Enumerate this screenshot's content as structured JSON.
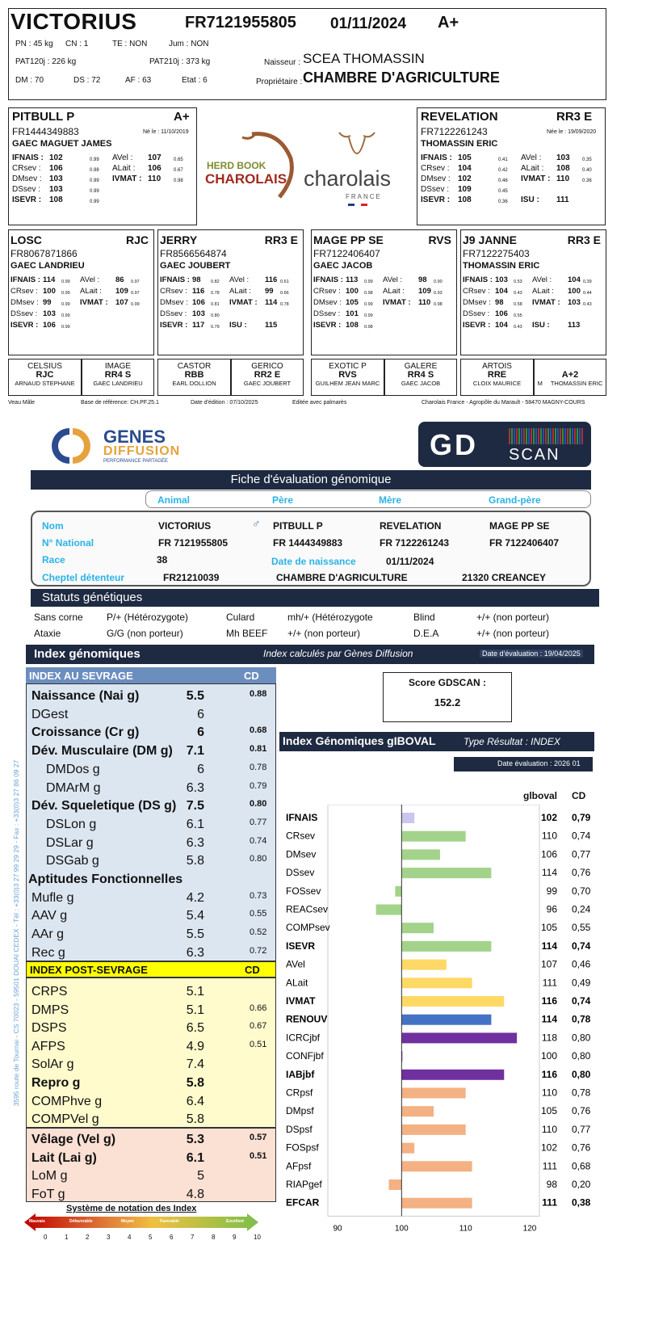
{
  "animal": {
    "name": "VICTORIUS",
    "national": "FR7121955805",
    "birth": "01/11/2024",
    "class": "A+",
    "pn": "PN : 45 kg",
    "cn": "CN : 1",
    "te": "TE : NON",
    "jum": "Jum : NON",
    "pat120": "PAT120j : 226 kg",
    "pat210": "PAT210j : 373 kg",
    "dm": "DM : 70",
    "ds": "DS : 72",
    "af": "AF : 63",
    "etat": "Etat : 6",
    "naisseur_label": "Naisseur :",
    "naisseur": "SCEA THOMASSIN",
    "proprio_label": "Propriétaire :",
    "proprio": "CHAMBRE D'AGRICULTURE"
  },
  "sire": {
    "name": "PITBULL P",
    "class": "A+",
    "national": "FR1444349883",
    "born": "Né le : 11/10/2019",
    "owner": "GAEC MAGUET JAMES",
    "l1": [
      "IFNAIS :",
      "102",
      "0.99",
      "AVel :",
      "107",
      "0.65"
    ],
    "l2": [
      "CRsev :",
      "106",
      "0.98",
      "ALait :",
      "106",
      "0.67"
    ],
    "l3": [
      "DMsev :",
      "103",
      "0.99",
      "IVMAT :",
      "110",
      "0.98"
    ],
    "l4": [
      "DSsev :",
      "103",
      "0.99"
    ],
    "l5": [
      "ISEVR :",
      "108",
      "0.99"
    ]
  },
  "dam": {
    "name": "REVELATION",
    "class": "RR3 E",
    "national": "FR7122261243",
    "born": "Née le : 19/09/2020",
    "owner": "THOMASSIN ERIC",
    "l1": [
      "IFNAIS :",
      "105",
      "0.41",
      "AVel :",
      "103",
      "0.35"
    ],
    "l2": [
      "CRsev :",
      "104",
      "0.42",
      "ALait :",
      "108",
      "0.40"
    ],
    "l3": [
      "DMsev :",
      "102",
      "0.46",
      "IVMAT :",
      "110",
      "0.36"
    ],
    "l4": [
      "DSsev :",
      "109",
      "0.45"
    ],
    "l5": [
      "ISEVR :",
      "108",
      "0.36",
      "ISU :",
      "111",
      ""
    ]
  },
  "logos": {
    "herdbook1": "HERD BOOK",
    "herdbook2": "CHAROLAIS",
    "charolais": "charolais",
    "france": "FRANCE"
  },
  "grand": [
    {
      "name": "LOSC",
      "class": "RJC",
      "national": "FR8067871866",
      "owner": "GAEC LANDRIEU",
      "l1": [
        "IFNAIS :",
        "114",
        "0.99",
        "AVel :",
        "86",
        "0.97"
      ],
      "l2": [
        "CRsev :",
        "100",
        "0.99",
        "ALait :",
        "109",
        "0.97"
      ],
      "l3": [
        "DMsev :",
        "99",
        "0.99",
        "IVMAT :",
        "107",
        "0.99"
      ],
      "l4": [
        "DSsev :",
        "103",
        "0.99"
      ],
      "l5": [
        "ISEVR :",
        "106",
        "0.99",
        "",
        "",
        ""
      ]
    },
    {
      "name": "JERRY",
      "class": "RR3 E",
      "national": "FR8566564874",
      "owner": "GAEC JOUBERT",
      "l1": [
        "IFNAIS :",
        "98",
        "0.82",
        "AVel :",
        "116",
        "0.61"
      ],
      "l2": [
        "CRsev :",
        "116",
        "0.78",
        "ALait :",
        "99",
        "0.66"
      ],
      "l3": [
        "DMsev :",
        "106",
        "0.81",
        "IVMAT :",
        "114",
        "0.78"
      ],
      "l4": [
        "DSsev :",
        "103",
        "0.80"
      ],
      "l5": [
        "ISEVR :",
        "117",
        "0.79",
        "ISU :",
        "115",
        ""
      ]
    },
    {
      "name": "MAGE PP SE",
      "class": "RVS",
      "national": "FR7122406407",
      "owner": "GAEC JACOB",
      "l1": [
        "IFNAIS :",
        "113",
        "0.99",
        "AVel :",
        "98",
        "0.90"
      ],
      "l2": [
        "CRsev :",
        "100",
        "0.98",
        "ALait :",
        "109",
        "0.93"
      ],
      "l3": [
        "DMsev :",
        "105",
        "0.99",
        "IVMAT :",
        "110",
        "0.98"
      ],
      "l4": [
        "DSsev :",
        "101",
        "0.99"
      ],
      "l5": [
        "ISEVR :",
        "108",
        "0.98",
        "",
        "",
        ""
      ]
    },
    {
      "name": "J9 JANNE",
      "class": "RR3 E",
      "national": "FR7122275403",
      "owner": "THOMASSIN ERIC",
      "l1": [
        "IFNAIS :",
        "103",
        "0.53",
        "AVel :",
        "104",
        "0.39"
      ],
      "l2": [
        "CRsev :",
        "104",
        "0.43",
        "ALait :",
        "100",
        "0.44"
      ],
      "l3": [
        "DMsev :",
        "98",
        "0.58",
        "IVMAT :",
        "103",
        "0.43"
      ],
      "l4": [
        "DSsev :",
        "106",
        "0.55"
      ],
      "l5": [
        "ISEVR :",
        "104",
        "0.43",
        "ISU :",
        "113",
        ""
      ]
    }
  ],
  "great": [
    {
      "name": "CELSIUS",
      "class": "RJC",
      "owner": "ARNAUD STEPHANE"
    },
    {
      "name": "IMAGE",
      "class": "RR4 S",
      "owner": "GAEC LANDRIEU"
    },
    {
      "name": "CASTOR",
      "class": "RBB",
      "owner": "EARL DOLLION"
    },
    {
      "name": "GERICO",
      "class": "RR2 E",
      "owner": "GAEC JOUBERT"
    },
    {
      "name": "EXOTIC P",
      "class": "RVS",
      "owner": "GUILHEM JEAN MARC"
    },
    {
      "name": "GALERE",
      "class": "RR4 S",
      "owner": "GAEC JACOB"
    },
    {
      "name": "ARTOIS",
      "class": "RRE",
      "owner": "CLOIX MAURICE"
    },
    {
      "name": "",
      "class": "A+2",
      "owner": "THOMASSIN ERIC",
      "prefix": "M"
    }
  ],
  "footer": {
    "veau": "Veau Mâle",
    "base": "Base de référence: CH.PF.25.1",
    "edition": "Date d'édition : 07/10/2025",
    "palmares": "Editée avec palmarès",
    "address": "Charolais France - Agropôle du Marault - 58470 MAGNY-COURS"
  },
  "gd": {
    "brand1": "GENES",
    "brand2": "DIFFUSION",
    "brand3": "PERFORMANCE PARTAGÉE",
    "scan1": "GD",
    "scan2": "SCAN",
    "fiche_title": "Fiche d'évaluation génomique",
    "tabs": [
      "Animal",
      "Père",
      "Mère",
      "Grand-père"
    ],
    "lbl_nom": "Nom",
    "lbl_national": "N° National",
    "lbl_race": "Race",
    "lbl_cheptel": "Cheptel détenteur",
    "lbl_dn": "Date de naissance",
    "nom": "VICTORIUS",
    "pere_nom": "PITBULL P",
    "mere_nom": "REVELATION",
    "gp_nom": "MAGE PP SE",
    "national": "FR 7121955805",
    "pere_nat": "FR 1444349883",
    "mere_nat": "FR 7122261243",
    "gp_nat": "FR 7122406407",
    "race": "38",
    "dn": "01/11/2024",
    "cheptel": "FR21210039",
    "cheptel_nom": "CHAMBRE D'AGRICULTURE",
    "cheptel_ville": "21320 CREANCEY",
    "statuts_title": "Statuts génétiques",
    "statuts": [
      [
        "Sans corne",
        "P/+ (Hétérozygote)",
        "Culard",
        "mh/+ (Hétérozygote",
        "Blind",
        "+/+ (non porteur)"
      ],
      [
        "Ataxie",
        "G/G (non porteur)",
        "Mh BEEF",
        "+/+ (non porteur)",
        "D.E.A",
        "+/+ (non porteur)"
      ]
    ],
    "idx_title": "Index génomiques",
    "idx_calc": "Index calculés par Gènes Diffusion",
    "idx_date": "Date d'évaluation : 19/04/2025",
    "sev_title": "INDEX AU SEVRAGE",
    "cd_label": "CD",
    "sev_rows": [
      {
        "l": "Naissance (Nai g)",
        "v": "5.5",
        "cd": "0.88",
        "b": true,
        "ind": 0
      },
      {
        "l": "DGest",
        "v": "6",
        "cd": "",
        "b": false,
        "ind": 0
      },
      {
        "l": "Croissance (Cr g)",
        "v": "6",
        "cd": "0.68",
        "b": true,
        "ind": 0
      },
      {
        "l": "Dév. Musculaire (DM g)",
        "v": "7.1",
        "cd": "0.81",
        "b": true,
        "ind": 0
      },
      {
        "l": "DMDos g",
        "v": "6",
        "cd": "0.78",
        "b": false,
        "ind": 1
      },
      {
        "l": "DMArM g",
        "v": "6.3",
        "cd": "0.79",
        "b": false,
        "ind": 1
      },
      {
        "l": "Dév. Squeletique (DS g)",
        "v": "7.5",
        "cd": "0.80",
        "b": true,
        "ind": 0
      },
      {
        "l": "DSLon g",
        "v": "6.1",
        "cd": "0.77",
        "b": false,
        "ind": 1
      },
      {
        "l": "DSLar g",
        "v": "6.3",
        "cd": "0.74",
        "b": false,
        "ind": 1
      },
      {
        "l": "DSGab g",
        "v": "5.8",
        "cd": "0.80",
        "b": false,
        "ind": 1
      },
      {
        "l": "Aptitudes Fonctionnelles",
        "v": "",
        "cd": "",
        "b": true,
        "ind": -1
      },
      {
        "l": "Mufle g",
        "v": "4.2",
        "cd": "0.73",
        "b": false,
        "ind": 0
      },
      {
        "l": "AAV g",
        "v": "5.4",
        "cd": "0.55",
        "b": false,
        "ind": 0
      },
      {
        "l": "AAr g",
        "v": "5.5",
        "cd": "0.52",
        "b": false,
        "ind": 0
      },
      {
        "l": "Rec g",
        "v": "6.3",
        "cd": "0.72",
        "b": false,
        "ind": 0
      }
    ],
    "post_title": "INDEX POST-SEVRAGE",
    "post_rows": [
      {
        "l": "CRPS",
        "v": "5.1",
        "cd": "",
        "b": false
      },
      {
        "l": "DMPS",
        "v": "5.1",
        "cd": "0.66",
        "b": false
      },
      {
        "l": "DSPS",
        "v": "6.5",
        "cd": "0.67",
        "b": false
      },
      {
        "l": "AFPS",
        "v": "4.9",
        "cd": "0.51",
        "b": false
      },
      {
        "l": "SolAr g",
        "v": "7.4",
        "cd": "",
        "b": false
      },
      {
        "l": "Repro g",
        "v": "5.8",
        "cd": "",
        "b": true
      },
      {
        "l": "COMPhve g",
        "v": "6.4",
        "cd": "",
        "b": false
      },
      {
        "l": "COMPVel g",
        "v": "5.8",
        "cd": "",
        "b": false
      }
    ],
    "vel_rows": [
      {
        "l": "Vêlage (Vel g)",
        "v": "5.3",
        "cd": "0.57",
        "b": true
      },
      {
        "l": "Lait (Lai g)",
        "v": "6.1",
        "cd": "0.51",
        "b": true
      },
      {
        "l": "LoM g",
        "v": "5",
        "cd": "",
        "b": false
      },
      {
        "l": "FoT g",
        "v": "4.8",
        "cd": "",
        "b": false
      }
    ],
    "notation_title": "Système de notation des Index",
    "notation_words": [
      "Mauvais",
      "Défavorable",
      "Moyen",
      "Favorable",
      "Excellent"
    ],
    "notation_ticks": [
      "0",
      "1",
      "2",
      "3",
      "4",
      "5",
      "6",
      "7",
      "8",
      "9",
      "10"
    ],
    "side_text": "3595 route de Tournai - CS 70023 - 59501 DOUAI CEDEX - Tél : +33(0)3 27 99 29 29 - Fax : +33(0)3 27 86 09 27",
    "score_label": "Score GDSCAN :",
    "score_value": "152.2",
    "gib_title": "Index Génomiques gIBOVAL",
    "gib_type": "Type Résultat : INDEX",
    "gib_date": "Date évaluation : 2026 01",
    "col_glb": "glboval",
    "col_cd": "CD"
  },
  "chart_data": {
    "type": "bar",
    "orientation": "horizontal",
    "title": "Index Génomiques gIBOVAL",
    "baseline": 100,
    "xlim": [
      90,
      120
    ],
    "xticks": [
      "90",
      "100",
      "110",
      "120"
    ],
    "categories": [
      "IFNAIS",
      "CRsev",
      "DMsev",
      "DSsev",
      "FOSsev",
      "REACsev",
      "COMPsev",
      "ISEVR",
      "AVel",
      "ALait",
      "IVMAT",
      "RENOUV",
      "ICRCjbf",
      "CONFjbf",
      "IABjbf",
      "CRpsf",
      "DMpsf",
      "DSpsf",
      "FOSpsf",
      "AFpsf",
      "RIAPgef",
      "EFCAR"
    ],
    "values": [
      102,
      110,
      106,
      114,
      99,
      96,
      105,
      114,
      107,
      111,
      116,
      114,
      118,
      100,
      116,
      110,
      105,
      110,
      102,
      111,
      98,
      111
    ],
    "cd": [
      "0,79",
      "0,74",
      "0,77",
      "0,76",
      "0,70",
      "0,24",
      "0,55",
      "0,74",
      "0,46",
      "0,49",
      "0,74",
      "0,78",
      "0,80",
      "0,80",
      "0,80",
      "0,78",
      "0,76",
      "0,77",
      "0,76",
      "0,68",
      "0,20",
      "0,38"
    ],
    "bold": [
      true,
      false,
      false,
      false,
      false,
      false,
      false,
      true,
      false,
      false,
      true,
      true,
      false,
      false,
      true,
      false,
      false,
      false,
      false,
      false,
      false,
      true
    ],
    "colors": [
      "#c9c6f0",
      "#a3d38a",
      "#a3d38a",
      "#a3d38a",
      "#a3d38a",
      "#a3d38a",
      "#a3d38a",
      "#a3d38a",
      "#ffd966",
      "#ffd966",
      "#ffd966",
      "#4472c4",
      "#7030a0",
      "#7030a0",
      "#7030a0",
      "#f4b183",
      "#f4b183",
      "#f4b183",
      "#f4b183",
      "#f4b183",
      "#f4b183",
      "#f4b183"
    ]
  }
}
